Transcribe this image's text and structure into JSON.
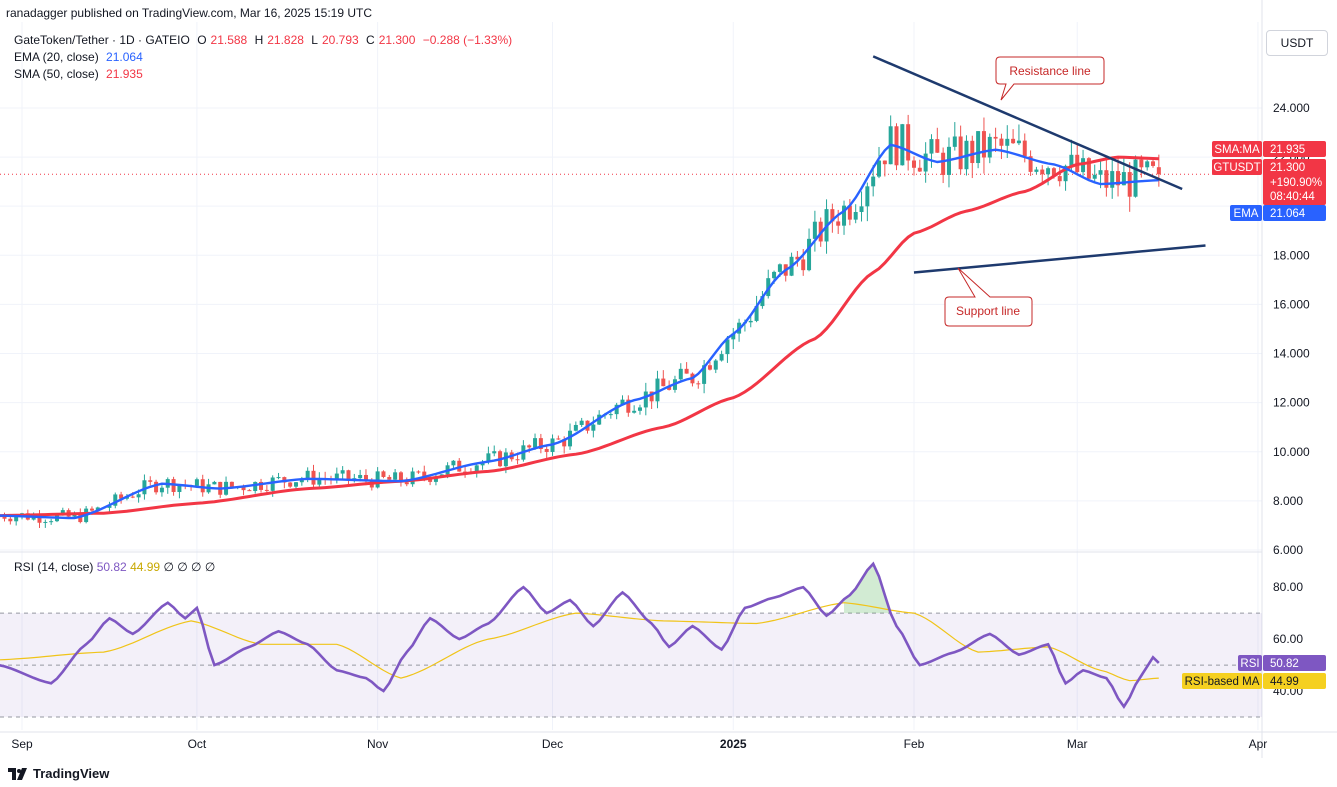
{
  "header": {
    "text": "ranadagger published on TradingView.com, Mar 16, 2025 15:19 UTC"
  },
  "legend": {
    "symbol": "GateToken/Tether · 1D · GATEIO",
    "ohlc": {
      "o_label": "O",
      "o": "21.588",
      "h_label": "H",
      "h": "21.828",
      "l_label": "L",
      "l": "20.793",
      "c_label": "C",
      "c": "21.300",
      "change": "−0.288 (−1.33%)"
    },
    "ema_label": "EMA (20, close)",
    "ema_value": "21.064",
    "sma_label": "SMA (50, close)",
    "sma_value": "21.935"
  },
  "unit": "USDT",
  "rsi_legend": {
    "label": "RSI (14, close)",
    "value1": "50.82",
    "value2": "44.99",
    "extra": "∅ ∅ ∅ ∅"
  },
  "tags": {
    "sma_label": "SMA:MA",
    "sma_value": "21.935",
    "price_label": "GTUSDT",
    "price_value": "21.300",
    "change_pct": "+190.90%",
    "countdown": "08:40:44",
    "ema_label": "EMA",
    "ema_value": "21.064",
    "rsi_label": "RSI",
    "rsi_value": "50.82",
    "rsima_label": "RSI-based MA",
    "rsima_value": "44.99"
  },
  "annotations": {
    "resistance": "Resistance line",
    "support": "Support line"
  },
  "footer": {
    "brand": "TradingView"
  },
  "colors": {
    "up": "#26a69a",
    "down": "#ef5350",
    "ema": "#2962ff",
    "sma": "#f23645",
    "rsi": "#7e57c2",
    "rsima": "#f0c419",
    "trend": "#1e3a6e"
  },
  "chart_data": [
    {
      "type": "candlestick",
      "title": "GateToken/Tether · 1D · GATEIO",
      "ylim": [
        6,
        27.5
      ],
      "y_ticks": [
        "6.000",
        "8.000",
        "10.000",
        "12.000",
        "14.000",
        "16.000",
        "18.000",
        "20.000",
        "22.000",
        "24.000"
      ],
      "x_ticks": [
        "Sep",
        "Oct",
        "Nov",
        "Dec",
        "2025",
        "Feb",
        "Mar",
        "Apr"
      ],
      "series": [
        {
          "name": "EMA (20, close)",
          "points": [
            [
              "Aug 28",
              7.4
            ],
            [
              "Sep 10",
              7.3
            ],
            [
              "Sep 25",
              8.7
            ],
            [
              "Oct 5",
              8.5
            ],
            [
              "Oct 20",
              8.9
            ],
            [
              "Nov 5",
              8.8
            ],
            [
              "Nov 20",
              9.6
            ],
            [
              "Dec 1",
              10.3
            ],
            [
              "Dec 15",
              12.1
            ],
            [
              "Dec 25",
              13.0
            ],
            [
              "Jan 1",
              14.8
            ],
            [
              "Jan 10",
              17.4
            ],
            [
              "Jan 20",
              19.8
            ],
            [
              "Jan 28",
              22.5
            ],
            [
              "Feb 5",
              21.8
            ],
            [
              "Feb 15",
              22.3
            ],
            [
              "Feb 25",
              21.7
            ],
            [
              "Mar 5",
              20.9
            ],
            [
              "Mar 15",
              21.06
            ]
          ]
        },
        {
          "name": "SMA (50, close)",
          "points": [
            [
              "Aug 28",
              7.4
            ],
            [
              "Sep 15",
              7.5
            ],
            [
              "Oct 1",
              7.9
            ],
            [
              "Oct 20",
              8.5
            ],
            [
              "Nov 5",
              8.8
            ],
            [
              "Nov 20",
              9.2
            ],
            [
              "Dec 5",
              9.9
            ],
            [
              "Dec 20",
              11.0
            ],
            [
              "Jan 1",
              12.2
            ],
            [
              "Jan 15",
              14.6
            ],
            [
              "Jan 25",
              17.3
            ],
            [
              "Feb 1",
              18.9
            ],
            [
              "Feb 10",
              19.8
            ],
            [
              "Feb 20",
              20.6
            ],
            [
              "Mar 1",
              21.7
            ],
            [
              "Mar 8",
              22.0
            ],
            [
              "Mar 15",
              21.935
            ]
          ]
        },
        {
          "name": "Resistance line",
          "points": [
            [
              "Jan 25",
              26.1
            ],
            [
              "Mar 19",
              20.7
            ]
          ]
        },
        {
          "name": "Support line",
          "points": [
            [
              "Feb 1",
              17.3
            ],
            [
              "Mar 23",
              18.4
            ]
          ]
        }
      ],
      "last": {
        "open": 21.588,
        "high": 21.828,
        "low": 20.793,
        "close": 21.3
      }
    },
    {
      "type": "line",
      "title": "RSI (14, close)",
      "ylim": [
        25,
        92
      ],
      "y_ticks": [
        "40.00",
        "60.00",
        "80.00"
      ],
      "series": [
        {
          "name": "RSI (14, close)",
          "last": 50.82
        },
        {
          "name": "RSI-based MA",
          "last": 44.99
        }
      ]
    }
  ]
}
